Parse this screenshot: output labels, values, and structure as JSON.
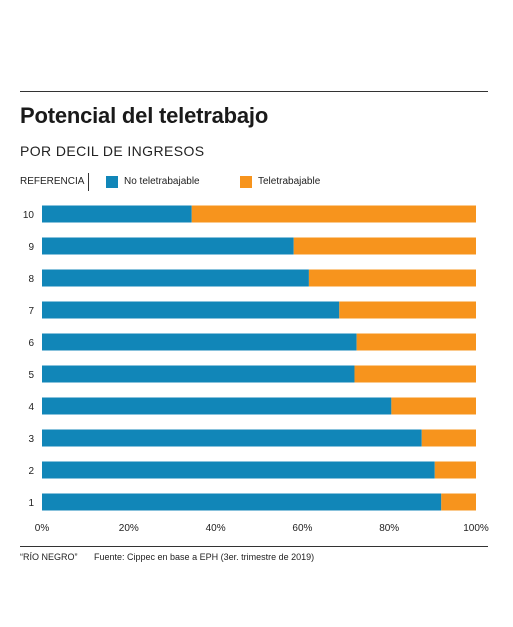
{
  "title": "Potencial del teletrabajo",
  "subtitle": "POR DECIL DE INGRESOS",
  "legend": {
    "title": "REFERENCIA",
    "items": [
      {
        "label": "No teletrabajable",
        "color": "#1186b8"
      },
      {
        "label": "Teletrabajable",
        "color": "#f7941d"
      }
    ]
  },
  "footer": {
    "source_credit": "“RÍO NEGRO”",
    "source": "Fuente: Cippec en base a EPH (3er. trimestre de 2019)"
  },
  "chart_data": {
    "type": "bar",
    "orientation": "horizontal",
    "stacked": true,
    "categories": [
      "10",
      "9",
      "8",
      "7",
      "6",
      "5",
      "4",
      "3",
      "2",
      "1"
    ],
    "series": [
      {
        "name": "No teletrabajable",
        "color": "#1186b8",
        "values": [
          34.5,
          58,
          61.5,
          68.5,
          72.5,
          72,
          80.5,
          87.5,
          90.5,
          92
        ]
      },
      {
        "name": "Teletrabajable",
        "color": "#f7941d",
        "values": [
          65.5,
          42,
          38.5,
          31.5,
          27.5,
          28,
          19.5,
          12.5,
          9.5,
          8
        ]
      }
    ],
    "xlim": [
      0,
      100
    ],
    "xticks": [
      "0%",
      "20%",
      "40%",
      "60%",
      "80%",
      "100%"
    ],
    "grid": false,
    "legend_position": "top-left"
  }
}
